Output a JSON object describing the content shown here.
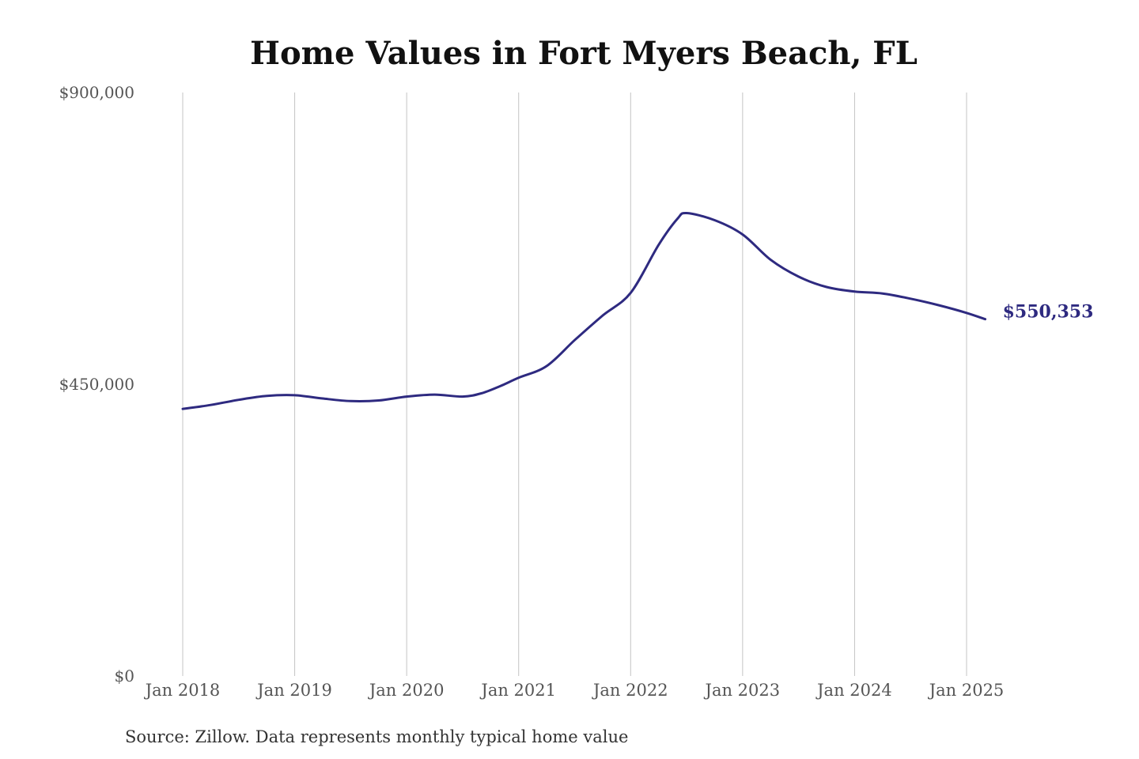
{
  "chart_data": {
    "type": "line",
    "title": "Home Values in Fort Myers Beach, FL",
    "xlabel": "",
    "ylabel": "",
    "source": "Source: Zillow. Data represents monthly typical home value",
    "ylim": [
      0,
      900000
    ],
    "y_ticks": [
      {
        "value": 0,
        "label": "$0"
      },
      {
        "value": 450000,
        "label": "$450,000"
      },
      {
        "value": 900000,
        "label": "$900,000"
      }
    ],
    "x_ticks": [
      {
        "value": "2018-01",
        "label": "Jan 2018"
      },
      {
        "value": "2019-01",
        "label": "Jan 2019"
      },
      {
        "value": "2020-01",
        "label": "Jan 2020"
      },
      {
        "value": "2021-01",
        "label": "Jan 2021"
      },
      {
        "value": "2022-01",
        "label": "Jan 2022"
      },
      {
        "value": "2023-01",
        "label": "Jan 2023"
      },
      {
        "value": "2024-01",
        "label": "Jan 2024"
      },
      {
        "value": "2025-01",
        "label": "Jan 2025"
      }
    ],
    "xlim": [
      "2018-01",
      "2025-01"
    ],
    "grid": "vertical",
    "series": [
      {
        "color": "#2e2a80",
        "end_label": "$550,353",
        "points": [
          {
            "x": "2018-01",
            "y": 412000
          },
          {
            "x": "2018-04",
            "y": 418000
          },
          {
            "x": "2018-07",
            "y": 426000
          },
          {
            "x": "2018-10",
            "y": 432000
          },
          {
            "x": "2019-01",
            "y": 433000
          },
          {
            "x": "2019-04",
            "y": 428000
          },
          {
            "x": "2019-07",
            "y": 424000
          },
          {
            "x": "2019-10",
            "y": 425000
          },
          {
            "x": "2020-01",
            "y": 431000
          },
          {
            "x": "2020-04",
            "y": 434000
          },
          {
            "x": "2020-07",
            "y": 431000
          },
          {
            "x": "2020-09",
            "y": 436000
          },
          {
            "x": "2020-11",
            "y": 447000
          },
          {
            "x": "2021-01",
            "y": 460000
          },
          {
            "x": "2021-04",
            "y": 478000
          },
          {
            "x": "2021-07",
            "y": 518000
          },
          {
            "x": "2021-10",
            "y": 556000
          },
          {
            "x": "2022-01",
            "y": 591000
          },
          {
            "x": "2022-04",
            "y": 665000
          },
          {
            "x": "2022-06",
            "y": 705000
          },
          {
            "x": "2022-07",
            "y": 714000
          },
          {
            "x": "2022-10",
            "y": 703000
          },
          {
            "x": "2023-01",
            "y": 681000
          },
          {
            "x": "2023-04",
            "y": 642000
          },
          {
            "x": "2023-07",
            "y": 616000
          },
          {
            "x": "2023-10",
            "y": 600000
          },
          {
            "x": "2024-01",
            "y": 593000
          },
          {
            "x": "2024-04",
            "y": 590000
          },
          {
            "x": "2024-07",
            "y": 582000
          },
          {
            "x": "2024-10",
            "y": 572000
          },
          {
            "x": "2025-01",
            "y": 560000
          },
          {
            "x": "2025-03",
            "y": 550353
          }
        ]
      }
    ]
  }
}
